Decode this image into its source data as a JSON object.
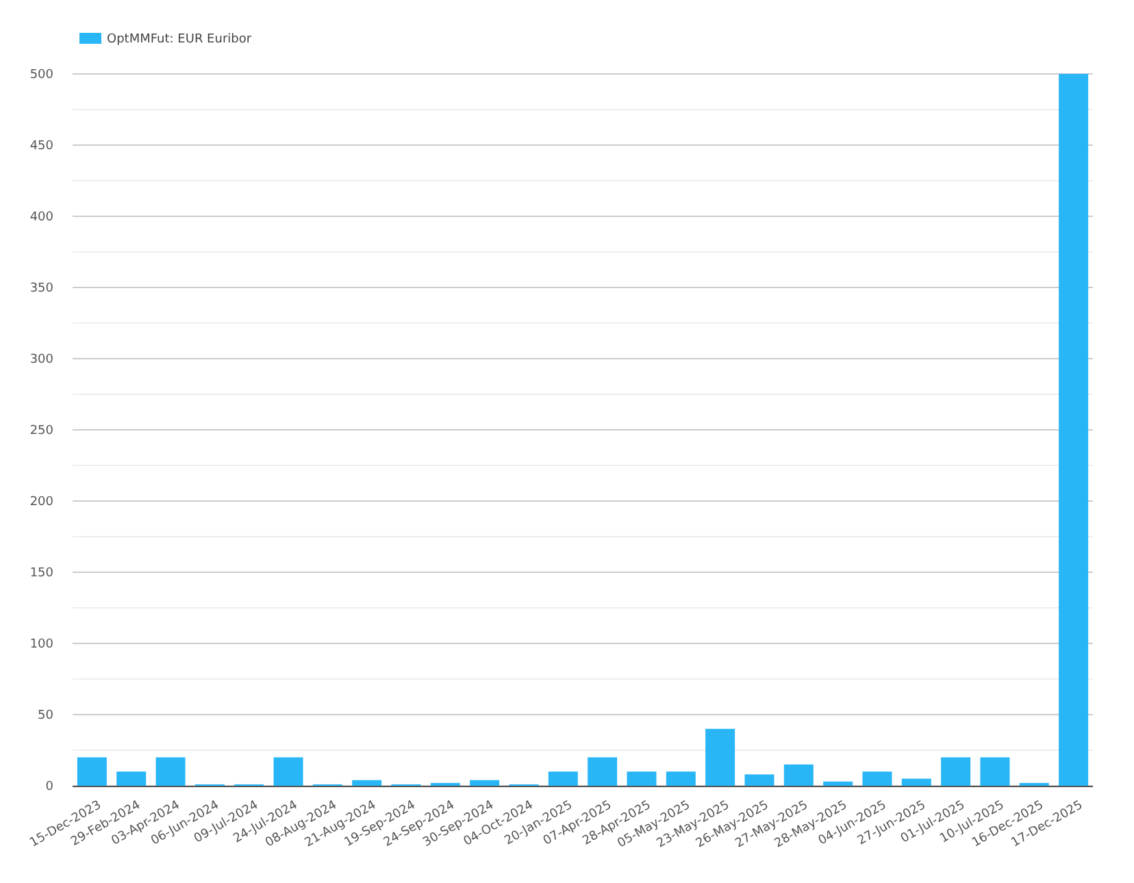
{
  "chart_data": {
    "type": "bar",
    "categories": [
      "15-Dec-2023",
      "29-Feb-2024",
      "03-Apr-2024",
      "06-Jun-2024",
      "09-Jul-2024",
      "24-Jul-2024",
      "08-Aug-2024",
      "21-Aug-2024",
      "19-Sep-2024",
      "24-Sep-2024",
      "30-Sep-2024",
      "04-Oct-2024",
      "20-Jan-2025",
      "07-Apr-2025",
      "28-Apr-2025",
      "05-May-2025",
      "23-May-2025",
      "26-May-2025",
      "27-May-2025",
      "28-May-2025",
      "04-Jun-2025",
      "27-Jun-2025",
      "01-Jul-2025",
      "10-Jul-2025",
      "16-Dec-2025",
      "17-Dec-2025"
    ],
    "series": [
      {
        "name": "OptMMFut: EUR Euribor",
        "color": "#29b6f6",
        "values": [
          20,
          10,
          20,
          1,
          1,
          20,
          1,
          4,
          1,
          2,
          4,
          1,
          10,
          20,
          10,
          10,
          40,
          8,
          15,
          3,
          10,
          5,
          20,
          20,
          2,
          500
        ]
      }
    ],
    "ylim": [
      0,
      500
    ],
    "yticks": [
      0,
      {
        "value": 25,
        "label": null
      },
      50,
      {
        "value": 75,
        "label": null
      },
      100,
      {
        "value": 125,
        "label": null
      },
      150,
      {
        "value": 175,
        "label": null
      },
      200,
      {
        "value": 225,
        "label": null
      },
      250,
      {
        "value": 275,
        "label": null
      },
      300,
      {
        "value": 325,
        "label": null
      },
      350,
      {
        "value": 375,
        "label": null
      },
      400,
      {
        "value": 425,
        "label": null
      },
      450,
      {
        "value": 475,
        "label": null
      },
      500
    ],
    "grid": "y",
    "legend": "top left"
  }
}
